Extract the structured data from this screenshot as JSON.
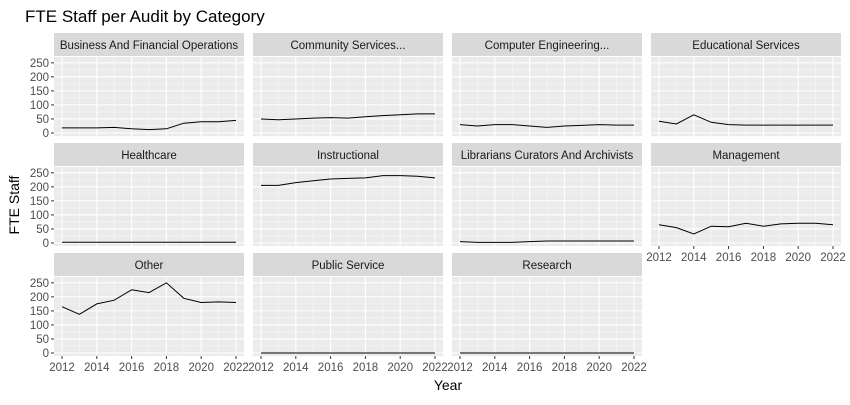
{
  "chart_data": {
    "type": "line",
    "title": "FTE Staff per Audit by Category",
    "xlabel": "Year",
    "ylabel": "FTE Staff",
    "x": [
      2012,
      2013,
      2014,
      2015,
      2016,
      2017,
      2018,
      2019,
      2020,
      2021,
      2022
    ],
    "xticks": [
      "2012",
      "2014",
      "2016",
      "2018",
      "2020",
      "2022"
    ],
    "ylim": [
      0,
      260
    ],
    "yticks": [
      "0",
      "50",
      "100",
      "150",
      "200",
      "250"
    ],
    "grid": true,
    "line_color": "#000000",
    "panel_bg": "#ebebeb",
    "strip_bg": "#d9d9d9",
    "panels": [
      {
        "label": "Business And Financial Operations",
        "values": [
          18,
          18,
          18,
          20,
          15,
          12,
          15,
          35,
          40,
          40,
          45
        ]
      },
      {
        "label": "Community Services...",
        "values": [
          50,
          47,
          50,
          53,
          55,
          53,
          58,
          62,
          65,
          68,
          68
        ]
      },
      {
        "label": "Computer Engineering...",
        "values": [
          30,
          25,
          30,
          30,
          25,
          20,
          25,
          27,
          30,
          28,
          28
        ]
      },
      {
        "label": "Educational Services",
        "values": [
          42,
          32,
          65,
          38,
          30,
          28,
          28,
          28,
          28,
          28,
          28
        ]
      },
      {
        "label": "Healthcare",
        "values": [
          3,
          3,
          3,
          3,
          3,
          3,
          3,
          3,
          3,
          3,
          3
        ]
      },
      {
        "label": "Instructional",
        "values": [
          205,
          205,
          215,
          222,
          228,
          230,
          232,
          240,
          240,
          238,
          232
        ]
      },
      {
        "label": "Librarians Curators And Archivists",
        "values": [
          5,
          2,
          2,
          2,
          5,
          7,
          7,
          7,
          7,
          7,
          7
        ]
      },
      {
        "label": "Management",
        "values": [
          65,
          55,
          32,
          60,
          58,
          70,
          60,
          68,
          70,
          70,
          65
        ]
      },
      {
        "label": "Other",
        "values": [
          165,
          138,
          175,
          188,
          225,
          215,
          250,
          195,
          180,
          182,
          180
        ]
      },
      {
        "label": "Public Service",
        "values": [
          0,
          0,
          0,
          0,
          0,
          0,
          0,
          0,
          0,
          0,
          0
        ]
      },
      {
        "label": "Research",
        "values": [
          0,
          0,
          0,
          0,
          0,
          0,
          0,
          0,
          0,
          0,
          0
        ]
      }
    ]
  }
}
